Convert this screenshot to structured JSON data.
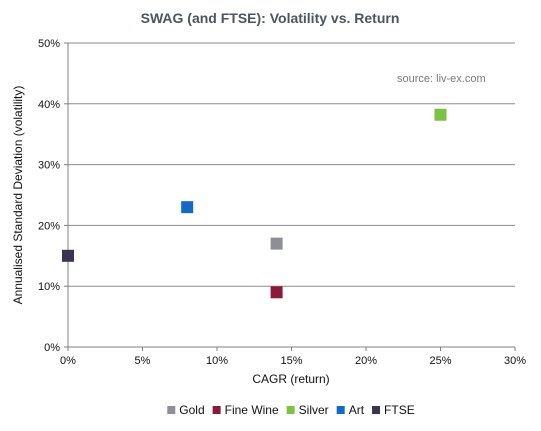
{
  "chart_data": {
    "type": "scatter",
    "title": "SWAG (and FTSE): Volatility vs. Return",
    "xlabel": "CAGR (return)",
    "ylabel": "Annualised Standard Deviation (volatility)",
    "annotation": "source: liv-ex.com",
    "xlim": [
      0,
      30
    ],
    "ylim": [
      0,
      50
    ],
    "x_ticks": [
      0,
      5,
      10,
      15,
      20,
      25,
      30
    ],
    "y_ticks": [
      0,
      10,
      20,
      30,
      40,
      50
    ],
    "x_tick_labels": [
      "0%",
      "5%",
      "10%",
      "15%",
      "20%",
      "25%",
      "30%"
    ],
    "y_tick_labels": [
      "0%",
      "10%",
      "20%",
      "30%",
      "40%",
      "50%"
    ],
    "grid": true,
    "legend_position": "bottom",
    "series": [
      {
        "name": "Gold",
        "color": "#8c8f96",
        "x": 14,
        "y": 17
      },
      {
        "name": "Fine Wine",
        "color": "#8b1a3a",
        "x": 14,
        "y": 9
      },
      {
        "name": "Silver",
        "color": "#7dc242",
        "x": 25,
        "y": 38.2
      },
      {
        "name": "Art",
        "color": "#1369c6",
        "x": 8,
        "y": 23
      },
      {
        "name": "FTSE",
        "color": "#3c3350",
        "x": 0,
        "y": 15
      }
    ]
  }
}
